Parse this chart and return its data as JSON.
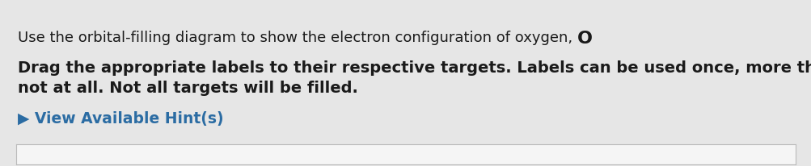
{
  "line1_normal": "Use the orbital-filling diagram to show the electron configuration of oxygen, ",
  "line1_bold_char": "O",
  "line1_period": ".",
  "line2": "Drag the appropriate labels to their respective targets. Labels can be used once, more than once, or",
  "line3": "not at all. Not all targets will be filled.",
  "hint_arrow": "▶",
  "hint_text": "View Available Hint(s)",
  "background_color": "#e6e6e6",
  "box_color": "#f5f5f5",
  "box_border_color": "#bbbbbb",
  "normal_text_color": "#1a1a1a",
  "hint_color": "#2b6ca3",
  "line1_fontsize": 13.0,
  "line2_fontsize": 14.0,
  "hint_fontsize": 13.5,
  "fig_width": 10.04,
  "fig_height": 2.06,
  "dpi": 100
}
